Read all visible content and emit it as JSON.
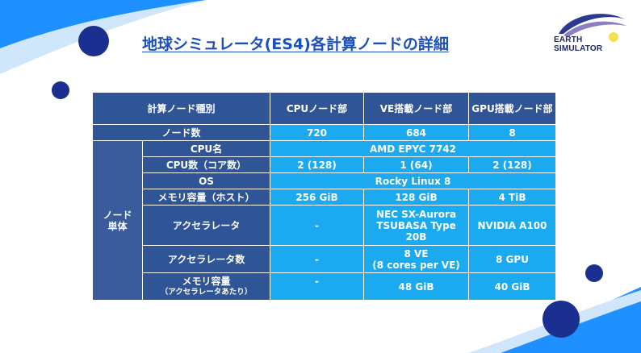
{
  "title": "地球シミュレータ(ES4)各計算ノードの詳細",
  "logo": {
    "line1": "EARTH",
    "line2": "SIMULATOR"
  },
  "colors": {
    "header_bg": "#2f5597",
    "cell_bg": "#1ba9f0",
    "title": "#1a50b8",
    "navy_dot": "#1a2f8f",
    "accent_blue": "#1e90ff",
    "logo_yellow": "#f4e04d"
  },
  "table": {
    "headers": {
      "node_type": "計算ノード種別",
      "cpu_node": "CPUノード部",
      "ve_node": "VE搭載ノード部",
      "gpu_node": "GPU搭載ノード部"
    },
    "node_count": {
      "label": "ノード数",
      "cpu": "720",
      "ve": "684",
      "gpu": "8"
    },
    "node_unit": {
      "label_line1": "ノード",
      "label_line2": "単体"
    },
    "cpu_name": {
      "label": "CPU名",
      "value": "AMD EPYC 7742"
    },
    "cpu_count": {
      "label": "CPU数（コア数）",
      "cpu": "2 (128)",
      "ve": "1 (64)",
      "gpu": "2 (128)"
    },
    "os": {
      "label": "OS",
      "value": "Rocky Linux 8"
    },
    "memory_host": {
      "label": "メモリ容量（ホスト）",
      "cpu": "256 GiB",
      "ve": "128 GiB",
      "gpu": "4 TiB"
    },
    "accelerator": {
      "label": "アクセラレータ",
      "cpu": "-",
      "ve_line1": "NEC SX-Aurora",
      "ve_line2": "TSUBASA Type",
      "ve_line3": "20B",
      "gpu": "NVIDIA A100"
    },
    "accelerator_count": {
      "label": "アクセラレータ数",
      "cpu": "-",
      "ve_line1": "8 VE",
      "ve_line2": "(8 cores per VE)",
      "gpu": "8 GPU"
    },
    "accelerator_memory": {
      "label_line1": "メモリ容量",
      "label_line2": "（アクセラレータあたり）",
      "cpu": "-",
      "ve": "48 GiB",
      "gpu": "40 GiB"
    }
  }
}
